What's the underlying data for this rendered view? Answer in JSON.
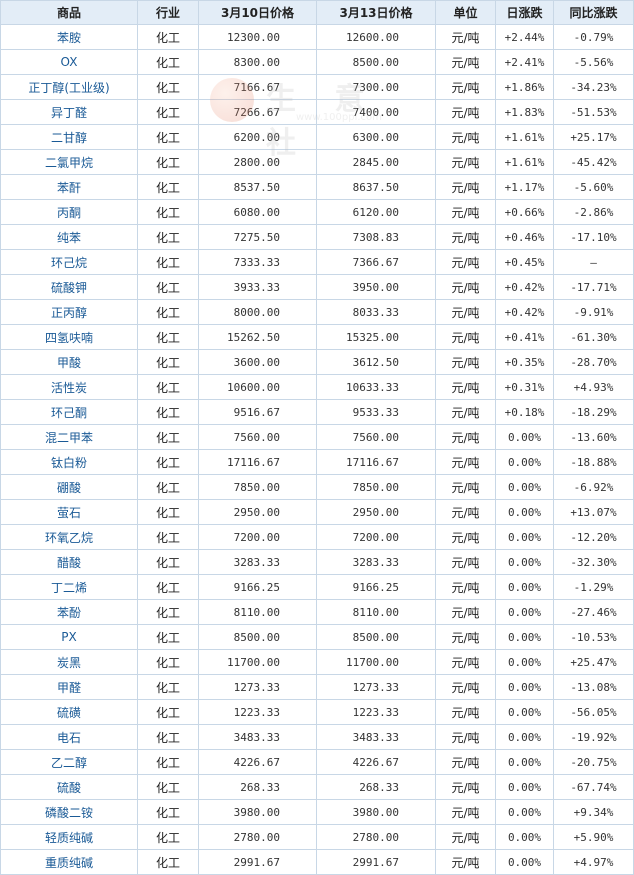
{
  "headers": [
    "商品",
    "行业",
    "3月10日价格",
    "3月13日价格",
    "单位",
    "日涨跌",
    "同比涨跌"
  ],
  "watermark": {
    "text": "生 意 社",
    "sub": "www.100ppi.com"
  },
  "rows": [
    {
      "name": "苯胺",
      "industry": "化工",
      "p1": "12300.00",
      "p2": "12600.00",
      "unit": "元/吨",
      "day": "+2.44%",
      "yoy": "-0.79%"
    },
    {
      "name": "OX",
      "industry": "化工",
      "p1": "8300.00",
      "p2": "8500.00",
      "unit": "元/吨",
      "day": "+2.41%",
      "yoy": "-5.56%"
    },
    {
      "name": "正丁醇(工业级)",
      "industry": "化工",
      "p1": "7166.67",
      "p2": "7300.00",
      "unit": "元/吨",
      "day": "+1.86%",
      "yoy": "-34.23%"
    },
    {
      "name": "异丁醛",
      "industry": "化工",
      "p1": "7266.67",
      "p2": "7400.00",
      "unit": "元/吨",
      "day": "+1.83%",
      "yoy": "-51.53%"
    },
    {
      "name": "二甘醇",
      "industry": "化工",
      "p1": "6200.00",
      "p2": "6300.00",
      "unit": "元/吨",
      "day": "+1.61%",
      "yoy": "+25.17%"
    },
    {
      "name": "二氯甲烷",
      "industry": "化工",
      "p1": "2800.00",
      "p2": "2845.00",
      "unit": "元/吨",
      "day": "+1.61%",
      "yoy": "-45.42%"
    },
    {
      "name": "苯酐",
      "industry": "化工",
      "p1": "8537.50",
      "p2": "8637.50",
      "unit": "元/吨",
      "day": "+1.17%",
      "yoy": "-5.60%"
    },
    {
      "name": "丙酮",
      "industry": "化工",
      "p1": "6080.00",
      "p2": "6120.00",
      "unit": "元/吨",
      "day": "+0.66%",
      "yoy": "-2.86%"
    },
    {
      "name": "纯苯",
      "industry": "化工",
      "p1": "7275.50",
      "p2": "7308.83",
      "unit": "元/吨",
      "day": "+0.46%",
      "yoy": "-17.10%"
    },
    {
      "name": "环己烷",
      "industry": "化工",
      "p1": "7333.33",
      "p2": "7366.67",
      "unit": "元/吨",
      "day": "+0.45%",
      "yoy": "—"
    },
    {
      "name": "硫酸钾",
      "industry": "化工",
      "p1": "3933.33",
      "p2": "3950.00",
      "unit": "元/吨",
      "day": "+0.42%",
      "yoy": "-17.71%"
    },
    {
      "name": "正丙醇",
      "industry": "化工",
      "p1": "8000.00",
      "p2": "8033.33",
      "unit": "元/吨",
      "day": "+0.42%",
      "yoy": "-9.91%"
    },
    {
      "name": "四氢呋喃",
      "industry": "化工",
      "p1": "15262.50",
      "p2": "15325.00",
      "unit": "元/吨",
      "day": "+0.41%",
      "yoy": "-61.30%"
    },
    {
      "name": "甲酸",
      "industry": "化工",
      "p1": "3600.00",
      "p2": "3612.50",
      "unit": "元/吨",
      "day": "+0.35%",
      "yoy": "-28.70%"
    },
    {
      "name": "活性炭",
      "industry": "化工",
      "p1": "10600.00",
      "p2": "10633.33",
      "unit": "元/吨",
      "day": "+0.31%",
      "yoy": "+4.93%"
    },
    {
      "name": "环己酮",
      "industry": "化工",
      "p1": "9516.67",
      "p2": "9533.33",
      "unit": "元/吨",
      "day": "+0.18%",
      "yoy": "-18.29%"
    },
    {
      "name": "混二甲苯",
      "industry": "化工",
      "p1": "7560.00",
      "p2": "7560.00",
      "unit": "元/吨",
      "day": "0.00%",
      "yoy": "-13.60%"
    },
    {
      "name": "钛白粉",
      "industry": "化工",
      "p1": "17116.67",
      "p2": "17116.67",
      "unit": "元/吨",
      "day": "0.00%",
      "yoy": "-18.88%"
    },
    {
      "name": "硼酸",
      "industry": "化工",
      "p1": "7850.00",
      "p2": "7850.00",
      "unit": "元/吨",
      "day": "0.00%",
      "yoy": "-6.92%"
    },
    {
      "name": "萤石",
      "industry": "化工",
      "p1": "2950.00",
      "p2": "2950.00",
      "unit": "元/吨",
      "day": "0.00%",
      "yoy": "+13.07%"
    },
    {
      "name": "环氧乙烷",
      "industry": "化工",
      "p1": "7200.00",
      "p2": "7200.00",
      "unit": "元/吨",
      "day": "0.00%",
      "yoy": "-12.20%"
    },
    {
      "name": "醋酸",
      "industry": "化工",
      "p1": "3283.33",
      "p2": "3283.33",
      "unit": "元/吨",
      "day": "0.00%",
      "yoy": "-32.30%"
    },
    {
      "name": "丁二烯",
      "industry": "化工",
      "p1": "9166.25",
      "p2": "9166.25",
      "unit": "元/吨",
      "day": "0.00%",
      "yoy": "-1.29%"
    },
    {
      "name": "苯酚",
      "industry": "化工",
      "p1": "8110.00",
      "p2": "8110.00",
      "unit": "元/吨",
      "day": "0.00%",
      "yoy": "-27.46%"
    },
    {
      "name": "PX",
      "industry": "化工",
      "p1": "8500.00",
      "p2": "8500.00",
      "unit": "元/吨",
      "day": "0.00%",
      "yoy": "-10.53%"
    },
    {
      "name": "炭黑",
      "industry": "化工",
      "p1": "11700.00",
      "p2": "11700.00",
      "unit": "元/吨",
      "day": "0.00%",
      "yoy": "+25.47%"
    },
    {
      "name": "甲醛",
      "industry": "化工",
      "p1": "1273.33",
      "p2": "1273.33",
      "unit": "元/吨",
      "day": "0.00%",
      "yoy": "-13.08%"
    },
    {
      "name": "硫磺",
      "industry": "化工",
      "p1": "1223.33",
      "p2": "1223.33",
      "unit": "元/吨",
      "day": "0.00%",
      "yoy": "-56.05%"
    },
    {
      "name": "电石",
      "industry": "化工",
      "p1": "3483.33",
      "p2": "3483.33",
      "unit": "元/吨",
      "day": "0.00%",
      "yoy": "-19.92%"
    },
    {
      "name": "乙二醇",
      "industry": "化工",
      "p1": "4226.67",
      "p2": "4226.67",
      "unit": "元/吨",
      "day": "0.00%",
      "yoy": "-20.75%"
    },
    {
      "name": "硫酸",
      "industry": "化工",
      "p1": "268.33",
      "p2": "268.33",
      "unit": "元/吨",
      "day": "0.00%",
      "yoy": "-67.74%"
    },
    {
      "name": "磷酸二铵",
      "industry": "化工",
      "p1": "3980.00",
      "p2": "3980.00",
      "unit": "元/吨",
      "day": "0.00%",
      "yoy": "+9.34%"
    },
    {
      "name": "轻质纯碱",
      "industry": "化工",
      "p1": "2780.00",
      "p2": "2780.00",
      "unit": "元/吨",
      "day": "0.00%",
      "yoy": "+5.90%"
    },
    {
      "name": "重质纯碱",
      "industry": "化工",
      "p1": "2991.67",
      "p2": "2991.67",
      "unit": "元/吨",
      "day": "0.00%",
      "yoy": "+4.97%"
    }
  ]
}
